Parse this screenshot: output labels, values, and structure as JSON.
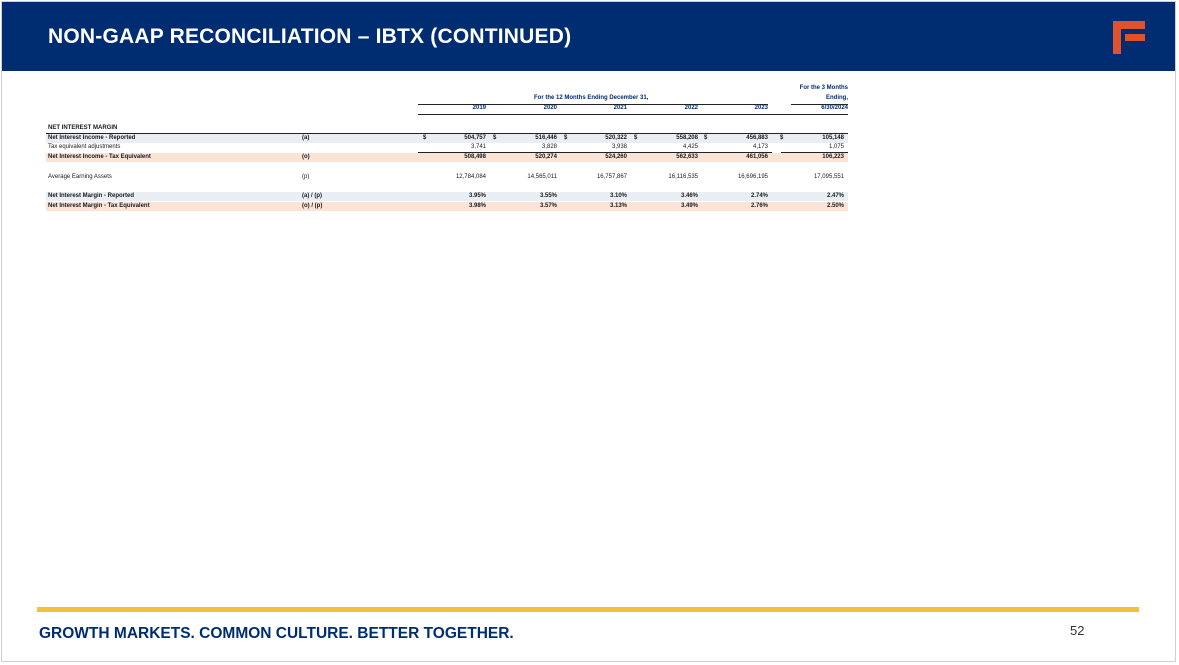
{
  "header": {
    "title": "NON-GAAP RECONCILIATION – IBTX (CONTINUED)"
  },
  "table": {
    "period_header_12m": "For the 12 Months Ending December 31,",
    "period_header_3m_line1": "For the 3 Months",
    "period_header_3m_line2": "Ending,",
    "columns": [
      "2019",
      "2020",
      "2021",
      "2022",
      "2023",
      "6/30/2024"
    ],
    "section_title": "NET INTEREST MARGIN",
    "currency_symbol": "$",
    "rows": [
      {
        "label": "Net Interest Income - Reported",
        "ref": "(a)",
        "values": [
          "504,757",
          "516,446",
          "520,322",
          "558,208",
          "456,883",
          "105,148"
        ]
      },
      {
        "label": "Tax equivalent adjustments",
        "ref": "",
        "values": [
          "3,741",
          "3,828",
          "3,938",
          "4,425",
          "4,173",
          "1,075"
        ]
      },
      {
        "label": "Net Interest Income - Tax Equivalent",
        "ref": "(o)",
        "values": [
          "508,498",
          "520,274",
          "524,260",
          "562,633",
          "461,056",
          "106,223"
        ]
      },
      {
        "label": "Average Earning Assets",
        "ref": "(p)",
        "values": [
          "12,784,084",
          "14,565,011",
          "16,757,867",
          "16,116,535",
          "16,696,195",
          "17,095,551"
        ]
      },
      {
        "label": "Net Interest Margin - Reported",
        "ref": "(a) / (p)",
        "values": [
          "3.95%",
          "3.55%",
          "3.10%",
          "3.46%",
          "2.74%",
          "2.47%"
        ]
      },
      {
        "label": "Net Interest Margin - Tax Equivalent",
        "ref": "(o) / (p)",
        "values": [
          "3.98%",
          "3.57%",
          "3.13%",
          "3.49%",
          "2.76%",
          "2.50%"
        ]
      }
    ]
  },
  "footer": {
    "tagline": "GROWTH MARKETS. COMMON CULTURE. BETTER TOGETHER.",
    "page_number": "52"
  },
  "colors": {
    "navy": "#002d72",
    "gold": "#f5bf3c",
    "logo_orange": "#e0522b",
    "row_shade_blue": "#e9eef5",
    "row_shade_peach": "#fbe3d6"
  },
  "icons": {
    "logo": "first-independent-f-logo"
  }
}
